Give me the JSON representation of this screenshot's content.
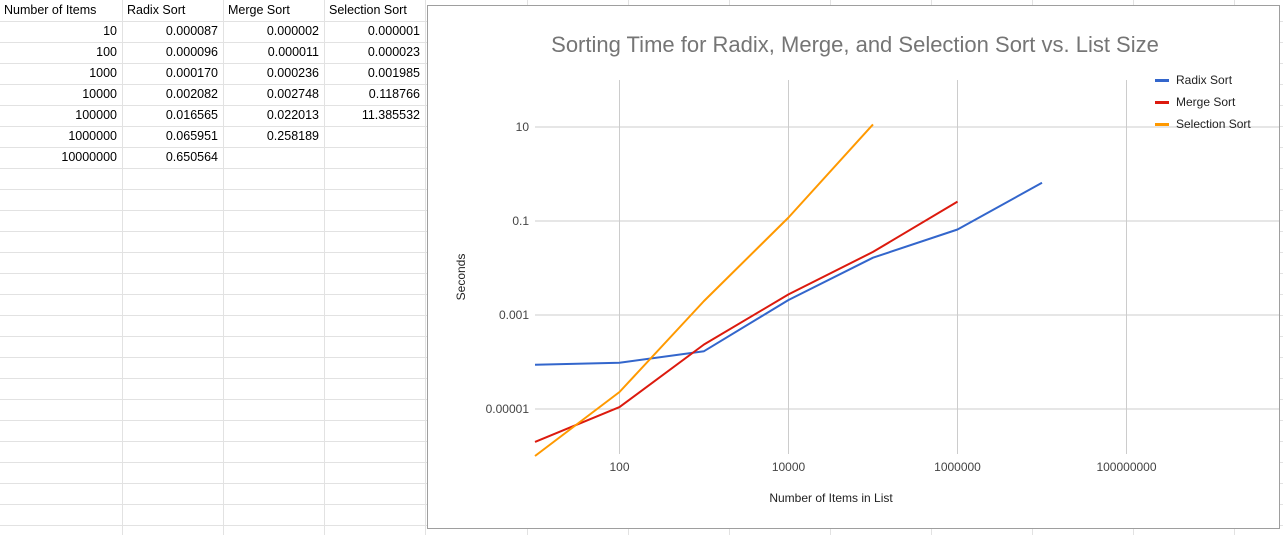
{
  "sheet": {
    "headers": [
      "Number of Items",
      "Radix Sort",
      "Merge Sort",
      "Selection Sort"
    ],
    "rows": [
      [
        "10",
        "0.000087",
        "0.000002",
        "0.000001"
      ],
      [
        "100",
        "0.000096",
        "0.000011",
        "0.000023"
      ],
      [
        "1000",
        "0.000170",
        "0.000236",
        "0.001985"
      ],
      [
        "10000",
        "0.002082",
        "0.002748",
        "0.118766"
      ],
      [
        "100000",
        "0.016565",
        "0.022013",
        "11.385532"
      ],
      [
        "1000000",
        "0.065951",
        "0.258189",
        ""
      ],
      [
        "10000000",
        "0.650564",
        "",
        ""
      ]
    ]
  },
  "chart_data": {
    "type": "line",
    "title": "Sorting Time for Radix, Merge, and Selection Sort vs. List Size",
    "xlabel": "Number of Items in List",
    "ylabel": "Seconds",
    "xscale": "log",
    "yscale": "log",
    "xlim": [
      10,
      100000000
    ],
    "ylim": [
      1e-06,
      100
    ],
    "xticks": [
      "100",
      "10000",
      "1000000",
      "100000000"
    ],
    "yticks": [
      "0.00001",
      "0.001",
      "0.1",
      "10"
    ],
    "grid": true,
    "legend_position": "right",
    "series": [
      {
        "name": "Radix Sort",
        "color": "#3366cc",
        "x": [
          10,
          100,
          1000,
          10000,
          100000,
          1000000,
          10000000
        ],
        "y": [
          8.7e-05,
          9.6e-05,
          0.00017,
          0.002082,
          0.016565,
          0.065951,
          0.650564
        ]
      },
      {
        "name": "Merge Sort",
        "color": "#dc1a0e",
        "x": [
          10,
          100,
          1000,
          10000,
          100000,
          1000000
        ],
        "y": [
          2e-06,
          1.1e-05,
          0.000236,
          0.002748,
          0.022013,
          0.258189
        ]
      },
      {
        "name": "Selection Sort",
        "color": "#ff9900",
        "x": [
          10,
          100,
          1000,
          10000,
          100000
        ],
        "y": [
          1e-06,
          2.3e-05,
          0.001985,
          0.118766,
          11.385532
        ]
      }
    ]
  }
}
